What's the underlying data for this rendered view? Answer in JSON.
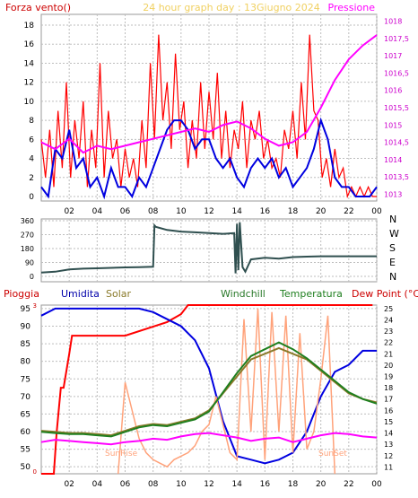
{
  "colors": {
    "background": "#ffffff",
    "plot_bg": "#ffffff",
    "grid": "#bdbdbd",
    "red": "#ff0000",
    "blue": "#0000e0",
    "magenta": "#ff00ff",
    "darkred": "#cc0000",
    "olive": "#8a7a2a",
    "darkgreen": "#2a7a2a",
    "green": "#1f7f1f",
    "slate": "#2f4f4f",
    "salmon": "#ffa27a",
    "gray": "#707070"
  },
  "header": {
    "title": "24 hour graph day : 13Giugno 2024",
    "left_label": "Forza vento()",
    "right_label": "Pressione"
  },
  "chart_data": [
    {
      "type": "line",
      "panel": "wind-pressure",
      "x_ticks": [
        "02",
        "04",
        "06",
        "08",
        "10",
        "12",
        "14",
        "16",
        "18",
        "20",
        "22",
        "00"
      ],
      "y_left": {
        "label": "Forza vento()",
        "range": [
          0,
          18
        ],
        "ticks": [
          "0",
          "2",
          "4",
          "6",
          "8",
          "10",
          "12",
          "14",
          "16",
          "18"
        ]
      },
      "y_right": {
        "label": "Pressione",
        "range": [
          1012.8,
          1018.2
        ],
        "ticks": [
          "1013",
          "1013,5",
          "1014",
          "1014,5",
          "1015",
          "1015,5",
          "1016",
          "1016,5",
          "1017",
          "1017,5",
          "1018"
        ]
      },
      "series": [
        {
          "color": "red",
          "axis": "left",
          "x": [
            0,
            0.3,
            0.6,
            0.9,
            1.2,
            1.5,
            1.8,
            2.1,
            2.4,
            2.7,
            3,
            3.3,
            3.6,
            3.9,
            4.2,
            4.5,
            4.8,
            5.1,
            5.4,
            5.7,
            6,
            6.3,
            6.6,
            6.9,
            7.2,
            7.5,
            7.8,
            8.1,
            8.4,
            8.7,
            9,
            9.3,
            9.6,
            9.9,
            10.2,
            10.5,
            10.8,
            11.1,
            11.4,
            11.7,
            12,
            12.3,
            12.6,
            12.9,
            13.2,
            13.5,
            13.8,
            14.1,
            14.4,
            14.7,
            15,
            15.3,
            15.6,
            15.9,
            16.2,
            16.5,
            16.8,
            17.1,
            17.4,
            17.7,
            18,
            18.3,
            18.6,
            18.9,
            19.2,
            19.5,
            19.8,
            20.1,
            20.4,
            20.7,
            21,
            21.3,
            21.6,
            21.9,
            22.2,
            22.5,
            22.8,
            23.1,
            23.4,
            23.7,
            24
          ],
          "values": [
            6,
            2,
            7,
            1,
            9,
            3,
            12,
            2,
            8,
            4,
            10,
            1,
            7,
            3,
            14,
            2,
            9,
            4,
            6,
            1,
            5,
            2,
            4,
            1,
            8,
            3,
            14,
            6,
            17,
            8,
            12,
            5,
            15,
            7,
            10,
            3,
            8,
            4,
            12,
            5,
            11,
            6,
            13,
            4,
            9,
            3,
            7,
            5,
            10,
            3,
            8,
            6,
            9,
            4,
            6,
            3,
            4,
            2,
            7,
            5,
            9,
            4,
            12,
            6,
            17,
            9,
            8,
            2,
            4,
            1,
            5,
            2,
            3,
            0,
            1,
            0,
            1,
            0,
            1,
            0,
            0
          ]
        },
        {
          "color": "blue",
          "axis": "left",
          "x": [
            0,
            0.5,
            1,
            1.5,
            2,
            2.5,
            3,
            3.5,
            4,
            4.5,
            5,
            5.5,
            6,
            6.5,
            7,
            7.5,
            8,
            8.5,
            9,
            9.5,
            10,
            10.5,
            11,
            11.5,
            12,
            12.5,
            13,
            13.5,
            14,
            14.5,
            15,
            15.5,
            16,
            16.5,
            17,
            17.5,
            18,
            18.5,
            19,
            19.5,
            20,
            20.5,
            21,
            21.5,
            22,
            22.5,
            23,
            23.5,
            24
          ],
          "values": [
            1,
            0,
            5,
            4,
            7,
            3,
            4,
            1,
            2,
            0,
            3,
            1,
            1,
            0,
            2,
            1,
            3,
            5,
            7,
            8,
            8,
            7,
            5,
            6,
            6,
            4,
            3,
            4,
            2,
            1,
            3,
            4,
            3,
            4,
            2,
            3,
            1,
            2,
            3,
            5,
            8,
            6,
            2,
            1,
            1,
            0,
            0,
            0,
            1
          ]
        },
        {
          "color": "magenta",
          "axis": "right",
          "x": [
            0,
            1,
            2,
            3,
            4,
            5,
            6,
            7,
            8,
            9,
            10,
            11,
            12,
            13,
            14,
            15,
            16,
            17,
            18,
            19,
            20,
            21,
            22,
            23,
            24
          ],
          "values": [
            1014.5,
            1014.3,
            1014.6,
            1014.2,
            1014.4,
            1014.3,
            1014.4,
            1014.5,
            1014.6,
            1014.7,
            1014.8,
            1014.9,
            1014.8,
            1015.0,
            1015.1,
            1014.9,
            1014.6,
            1014.4,
            1014.5,
            1014.8,
            1015.5,
            1016.3,
            1016.9,
            1017.3,
            1017.6
          ]
        }
      ]
    },
    {
      "type": "line",
      "panel": "wind-direction",
      "y": {
        "range": [
          0,
          360
        ],
        "ticks": [
          "0",
          "90",
          "180",
          "270",
          "360"
        ]
      },
      "compass_labels": [
        "N",
        "W",
        "S",
        "E",
        "N"
      ],
      "series": [
        {
          "color": "slate",
          "x": [
            0,
            1,
            2,
            3,
            4,
            5,
            6,
            7,
            8,
            8.1,
            8.2,
            9,
            10,
            11,
            12,
            13,
            13.8,
            13.9,
            14.0,
            14.1,
            14.2,
            14.4,
            14.6,
            15,
            16,
            17,
            18,
            19,
            20,
            21,
            22,
            23,
            24
          ],
          "values": [
            25,
            30,
            45,
            50,
            52,
            55,
            58,
            60,
            62,
            330,
            320,
            300,
            290,
            285,
            280,
            275,
            280,
            20,
            340,
            40,
            350,
            60,
            30,
            110,
            120,
            115,
            125,
            128,
            130,
            130,
            130,
            130,
            130
          ]
        }
      ]
    },
    {
      "type": "line",
      "panel": "rain-humidity-temp",
      "labels": [
        "Pioggia",
        "Umidita",
        "Solar",
        "Windchill",
        "Temperatura",
        "Dew Point (°C)"
      ],
      "y_left": {
        "range": [
          48,
          96
        ],
        "ticks": [
          "50",
          "55",
          "60",
          "65",
          "70",
          "75",
          "80",
          "85",
          "90",
          "95"
        ]
      },
      "y_right": {
        "range": [
          10.4,
          25.3
        ],
        "ticks": [
          "11",
          "12",
          "13",
          "14",
          "15",
          "16",
          "17",
          "18",
          "19",
          "20",
          "21",
          "22",
          "23",
          "24",
          "25"
        ]
      },
      "annotations": [
        "SunRise",
        "SunSet"
      ],
      "series": [
        {
          "color": "red",
          "axis": "right",
          "x": [
            0,
            0.9,
            1.1,
            1.4,
            1.6,
            2.0,
            2.2,
            5,
            6,
            9,
            10,
            10.5,
            23.7
          ],
          "values": [
            10.4,
            10.4,
            14,
            18,
            18,
            21,
            22.6,
            22.6,
            22.6,
            23.8,
            24.5,
            25.3,
            25.3
          ]
        },
        {
          "color": "blue",
          "axis": "left",
          "x": [
            0,
            1,
            2,
            3,
            4,
            5,
            6,
            7,
            8,
            9,
            10,
            11,
            12,
            13,
            14,
            15,
            16,
            17,
            18,
            19,
            20,
            21,
            22,
            23,
            24
          ],
          "values": [
            93,
            95,
            95,
            95,
            95,
            95,
            95,
            95,
            94,
            92,
            90,
            86,
            78,
            63,
            53,
            52,
            51,
            52,
            54,
            60,
            70,
            77,
            79,
            83,
            83
          ]
        },
        {
          "color": "salmon",
          "axis": "left",
          "x": [
            5.5,
            6,
            6.5,
            7,
            7.5,
            8,
            8.5,
            9,
            9.5,
            10,
            10.5,
            11,
            11.5,
            12,
            12.5,
            13,
            13.5,
            14,
            14.5,
            15,
            15.5,
            16,
            16.5,
            17,
            17.5,
            18,
            18.5,
            19,
            19.5,
            20,
            20.5,
            21
          ],
          "values": [
            48,
            74,
            66,
            58,
            54,
            52,
            51,
            50,
            52,
            53,
            54,
            56,
            60,
            62,
            70,
            62,
            54,
            52,
            92,
            60,
            95,
            52,
            94,
            60,
            93,
            54,
            88,
            55,
            60,
            75,
            93,
            48
          ]
        },
        {
          "color": "olive",
          "axis": "right",
          "x": [
            0,
            1,
            2,
            3,
            4,
            5,
            6,
            7,
            8,
            9,
            10,
            11,
            12,
            13,
            14,
            15,
            16,
            17,
            18,
            19,
            20,
            21,
            22,
            23,
            24
          ],
          "values": [
            14.2,
            14.1,
            14.0,
            14.0,
            13.9,
            13.8,
            14.2,
            14.6,
            14.8,
            14.7,
            15.0,
            15.3,
            16.0,
            17.5,
            19.0,
            20.5,
            21.0,
            21.5,
            21.0,
            20.5,
            19.5,
            18.5,
            17.5,
            17.0,
            16.7
          ]
        },
        {
          "color": "green",
          "axis": "right",
          "x": [
            0,
            1,
            2,
            3,
            4,
            5,
            6,
            7,
            8,
            9,
            10,
            11,
            12,
            13,
            14,
            15,
            16,
            17,
            18,
            19,
            20,
            21,
            22,
            23,
            24
          ],
          "values": [
            14.1,
            14.0,
            13.9,
            13.9,
            13.8,
            13.7,
            14.1,
            14.5,
            14.7,
            14.6,
            14.9,
            15.2,
            15.9,
            17.6,
            19.3,
            20.8,
            21.4,
            22.0,
            21.4,
            20.6,
            19.6,
            18.6,
            17.6,
            17.0,
            16.6
          ]
        },
        {
          "color": "magenta",
          "axis": "right",
          "x": [
            0,
            1,
            2,
            3,
            4,
            5,
            6,
            7,
            8,
            9,
            10,
            11,
            12,
            13,
            14,
            15,
            16,
            17,
            18,
            19,
            20,
            21,
            22,
            23,
            24
          ],
          "values": [
            13.2,
            13.4,
            13.3,
            13.2,
            13.1,
            13.0,
            13.2,
            13.3,
            13.5,
            13.4,
            13.7,
            13.9,
            14.0,
            13.8,
            13.6,
            13.3,
            13.5,
            13.6,
            13.2,
            13.5,
            13.8,
            14.0,
            13.9,
            13.7,
            13.6
          ]
        }
      ]
    }
  ]
}
